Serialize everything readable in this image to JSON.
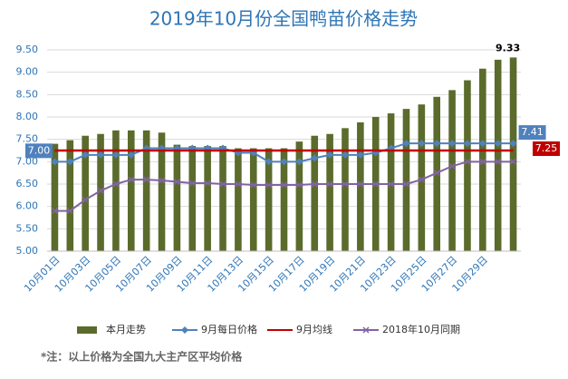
{
  "chart_data": {
    "type": "bar",
    "title": "2019年10月份全国鸭苗价格走势",
    "note": "*注：以上价格为全国九大主产区平均价格",
    "categories": [
      "10月01日",
      null,
      "10月03日",
      null,
      "10月05日",
      null,
      "10月07日",
      null,
      "10月09日",
      null,
      "10月11日",
      null,
      "10月13日",
      null,
      "10月15日",
      null,
      "10月17日",
      null,
      "10月19日",
      null,
      "10月21日",
      null,
      "10月23日",
      null,
      "10月25日",
      null,
      "10月27日",
      null,
      "10月29日",
      null,
      null
    ],
    "ylim": [
      5,
      9.5
    ],
    "yticks": [
      {
        "value": 5,
        "label": "5.00"
      },
      {
        "value": 5.5,
        "label": "5.50"
      },
      {
        "value": 6,
        "label": "6.00"
      },
      {
        "value": 6.5,
        "label": "6.50"
      },
      {
        "value": 7,
        "label": "7.00"
      },
      {
        "value": 7.5,
        "label": "7.50"
      },
      {
        "value": 8,
        "label": "8.00"
      },
      {
        "value": 8.5,
        "label": "8.50"
      },
      {
        "value": 9,
        "label": "9.00"
      },
      {
        "value": 9.5,
        "label": "9.50"
      }
    ],
    "grid": true,
    "legend": "bottom",
    "series": [
      {
        "name": "本月走势",
        "type": "bar",
        "color": "#5b6b2c",
        "values": [
          7.4,
          7.48,
          7.58,
          7.62,
          7.7,
          7.7,
          7.7,
          7.65,
          7.38,
          7.35,
          7.35,
          7.35,
          7.3,
          7.3,
          7.3,
          7.3,
          7.45,
          7.58,
          7.62,
          7.75,
          7.88,
          8.0,
          8.08,
          8.18,
          8.28,
          8.45,
          8.6,
          8.82,
          9.08,
          9.28,
          9.33
        ],
        "value_labels": {
          "30": "9.33"
        }
      },
      {
        "name": "9月每日价格",
        "type": "line",
        "marker": "diamond",
        "color": "#4f81bd",
        "values": [
          7.0,
          7.0,
          7.15,
          7.15,
          7.15,
          7.15,
          7.3,
          7.3,
          7.3,
          7.3,
          7.3,
          7.3,
          7.2,
          7.2,
          7.0,
          7.0,
          7.0,
          7.08,
          7.15,
          7.15,
          7.15,
          7.2,
          7.3,
          7.41,
          7.41,
          7.41,
          7.41,
          7.41,
          7.41,
          7.41,
          7.41
        ],
        "value_labels": {
          "0": "7.00",
          "30": "7.41"
        }
      },
      {
        "name": "9月均线",
        "type": "line",
        "marker": "none",
        "color": "#c00000",
        "values": [
          7.25,
          7.25,
          7.25,
          7.25,
          7.25,
          7.25,
          7.25,
          7.25,
          7.25,
          7.25,
          7.25,
          7.25,
          7.25,
          7.25,
          7.25,
          7.25,
          7.25,
          7.25,
          7.25,
          7.25,
          7.25,
          7.25,
          7.25,
          7.25,
          7.25,
          7.25,
          7.25,
          7.25,
          7.25,
          7.25,
          7.25
        ]
      },
      {
        "name": "2018年10月同期",
        "type": "line",
        "marker": "x",
        "color": "#8064a2",
        "values": [
          5.9,
          5.9,
          6.15,
          6.35,
          6.5,
          6.6,
          6.6,
          6.58,
          6.55,
          6.52,
          6.52,
          6.5,
          6.5,
          6.48,
          6.48,
          6.48,
          6.48,
          6.5,
          6.5,
          6.5,
          6.5,
          6.5,
          6.5,
          6.5,
          6.6,
          6.75,
          6.9,
          7.0,
          7.0,
          7.0,
          7.0
        ]
      }
    ]
  }
}
